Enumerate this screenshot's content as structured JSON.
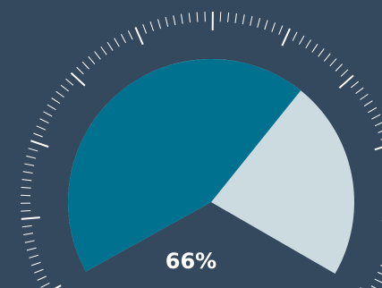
{
  "gauge": {
    "value": 66,
    "value_label": "66%",
    "min": 0,
    "max": 100,
    "colors": {
      "background": "#34495e",
      "fill": "#00728f",
      "track": "#cbdbe0",
      "ticks": "#ffffff",
      "label": "#ffffff"
    }
  }
}
